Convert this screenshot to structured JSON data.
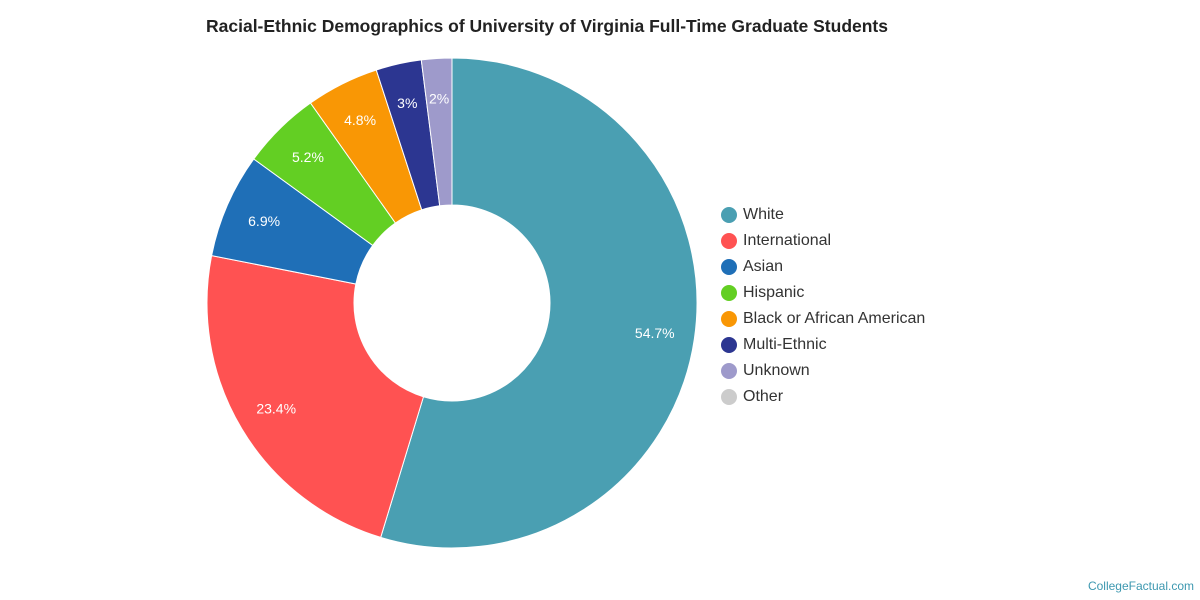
{
  "chart_data": {
    "type": "pie",
    "title": "Racial-Ethnic Demographics of University of Virginia Full-Time Graduate Students",
    "donut": true,
    "legend_position": "right",
    "slices": [
      {
        "label": "White",
        "value": 54.7,
        "display": "54.7%",
        "color": "#4a9fb2"
      },
      {
        "label": "International",
        "value": 23.4,
        "display": "23.4%",
        "color": "#ff5252"
      },
      {
        "label": "Asian",
        "value": 6.9,
        "display": "6.9%",
        "color": "#1f6fb7"
      },
      {
        "label": "Hispanic",
        "value": 5.2,
        "display": "5.2%",
        "color": "#63cf23"
      },
      {
        "label": "Black or African American",
        "value": 4.8,
        "display": "4.8%",
        "color": "#f99705"
      },
      {
        "label": "Multi-Ethnic",
        "value": 3.0,
        "display": "3%",
        "color": "#2c3691"
      },
      {
        "label": "Unknown",
        "value": 2.0,
        "display": "2%",
        "color": "#9e9acb"
      },
      {
        "label": "Other",
        "value": 0.0,
        "display": "",
        "color": "#cccccc"
      }
    ]
  },
  "watermark": "CollegeFactual.com"
}
